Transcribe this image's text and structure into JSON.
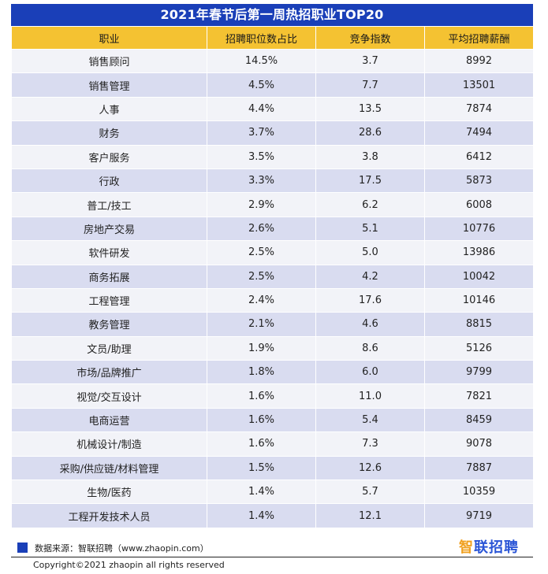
{
  "title": "2021年春节后第一周热招职业TOP20",
  "headers": [
    "职业",
    "招聘职位数占比",
    "竞争指数",
    "平均招聘薪酬"
  ],
  "rows": [
    [
      "销售顾问",
      "14.5%",
      "3.7",
      "8992"
    ],
    [
      "销售管理",
      "4.5%",
      "7.7",
      "13501"
    ],
    [
      "人事",
      "4.4%",
      "13.5",
      "7874"
    ],
    [
      "财务",
      "3.7%",
      "28.6",
      "7494"
    ],
    [
      "客户服务",
      "3.5%",
      "3.8",
      "6412"
    ],
    [
      "行政",
      "3.3%",
      "17.5",
      "5873"
    ],
    [
      "普工/技工",
      "2.9%",
      "6.2",
      "6008"
    ],
    [
      "房地产交易",
      "2.6%",
      "5.1",
      "10776"
    ],
    [
      "软件研发",
      "2.5%",
      "5.0",
      "13986"
    ],
    [
      "商务拓展",
      "2.5%",
      "4.2",
      "10042"
    ],
    [
      "工程管理",
      "2.4%",
      "17.6",
      "10146"
    ],
    [
      "教务管理",
      "2.1%",
      "4.6",
      "8815"
    ],
    [
      "文员/助理",
      "1.9%",
      "8.6",
      "5126"
    ],
    [
      "市场/品牌推广",
      "1.8%",
      "6.0",
      "9799"
    ],
    [
      "视觉/交互设计",
      "1.6%",
      "11.0",
      "7821"
    ],
    [
      "电商运营",
      "1.6%",
      "5.4",
      "8459"
    ],
    [
      "机械设计/制造",
      "1.6%",
      "7.3",
      "9078"
    ],
    [
      "采购/供应链/材料管理",
      "1.5%",
      "12.6",
      "7887"
    ],
    [
      "生物/医药",
      "1.4%",
      "5.7",
      "10359"
    ],
    [
      "工程开发技术人员",
      "1.4%",
      "12.1",
      "9719"
    ]
  ],
  "footer": {
    "source": "数据来源：智联招聘（www.zhaopin.com）",
    "logo_accent": "智",
    "logo_text": "联招聘",
    "copyright": "Copyright©2021 zhaopin all rights reserved"
  },
  "colors": {
    "title_bg": "#1a3fb8",
    "header_bg": "#f4c232",
    "row_light": "#f2f3f8",
    "row_dark": "#d9dcf0",
    "logo": "#2a55d6"
  }
}
